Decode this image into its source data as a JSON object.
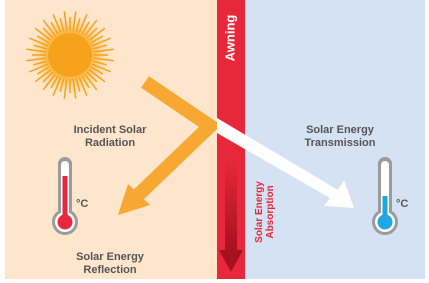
{
  "awning": "Awning",
  "incident": [
    "Incident Solar",
    "Radiation"
  ],
  "transmission": [
    "Solar Energy",
    "Transmission"
  ],
  "reflection": [
    "Solar Energy",
    "Reflection"
  ],
  "absorption": [
    "Solar Energy",
    "Absorption"
  ],
  "thermometers": [
    "°C",
    "°C"
  ]
}
